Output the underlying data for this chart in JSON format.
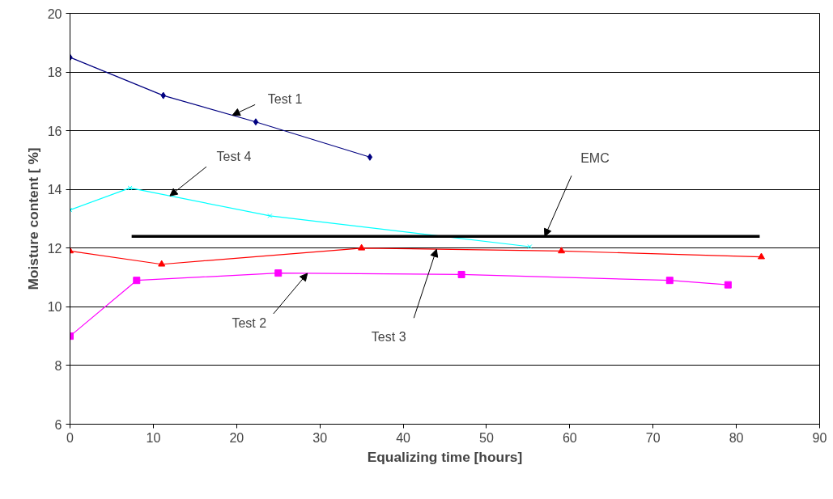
{
  "chart_data": {
    "type": "line",
    "xlabel": "Equalizing time [hours]",
    "ylabel": "Moisture content [ %]",
    "xlim": [
      0,
      90
    ],
    "xticks": [
      0,
      10,
      20,
      30,
      40,
      50,
      60,
      70,
      80,
      90
    ],
    "ylim": [
      6,
      20
    ],
    "yticks": [
      6,
      8,
      10,
      12,
      14,
      16,
      18,
      20
    ],
    "grid": "y",
    "series": [
      {
        "color": "#000080",
        "marker": "diamond",
        "x": [
          0,
          11.2,
          22.3,
          36
        ],
        "values": [
          18.5,
          17.2,
          16.3,
          15.1
        ]
      },
      {
        "color": "#00ffff",
        "marker": "cross",
        "x": [
          0,
          7.2,
          24,
          55.2
        ],
        "values": [
          13.3,
          14.05,
          13.1,
          12.05
        ]
      },
      {
        "color": "#ff0000",
        "marker": "triangle",
        "x": [
          0,
          11,
          35,
          59,
          83
        ],
        "values": [
          11.9,
          11.45,
          12.0,
          11.9,
          11.7
        ]
      },
      {
        "color": "#ff00ff",
        "marker": "square",
        "x": [
          0,
          8,
          25,
          47,
          72,
          79
        ],
        "values": [
          9.0,
          10.9,
          11.15,
          11.1,
          10.9,
          10.75
        ]
      },
      {
        "color": "#000000",
        "marker": "none",
        "x": [
          7.4,
          82.8
        ],
        "values": [
          12.4,
          12.4
        ]
      }
    ],
    "annotations": [
      {
        "text": "Test 1",
        "x": 19.5,
        "y": 16.53
      },
      {
        "text": "Test 4",
        "x": 12,
        "y": 13.78
      },
      {
        "text": "EMC",
        "x": 57,
        "y": 12.4
      },
      {
        "text": "Test 3",
        "x": 44,
        "y": 11.96
      },
      {
        "text": "Test 2",
        "x": 28.5,
        "y": 11.14
      }
    ]
  }
}
